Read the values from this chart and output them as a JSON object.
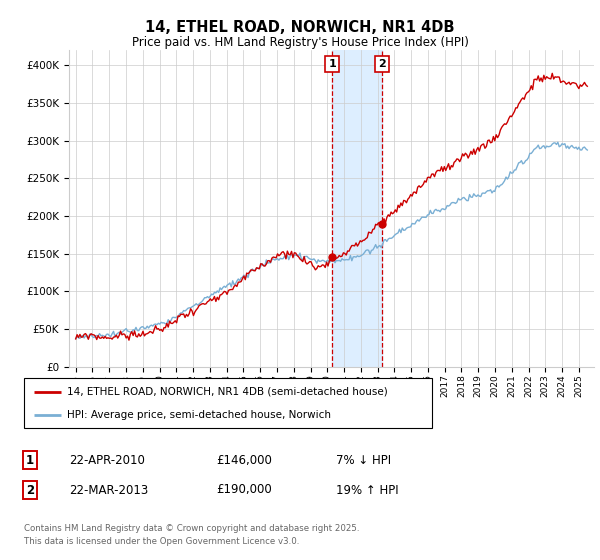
{
  "title": "14, ETHEL ROAD, NORWICH, NR1 4DB",
  "subtitle": "Price paid vs. HM Land Registry's House Price Index (HPI)",
  "legend_line1": "14, ETHEL ROAD, NORWICH, NR1 4DB (semi-detached house)",
  "legend_line2": "HPI: Average price, semi-detached house, Norwich",
  "transaction1_date": "22-APR-2010",
  "transaction1_price": "£146,000",
  "transaction1_hpi": "7% ↓ HPI",
  "transaction2_date": "22-MAR-2013",
  "transaction2_price": "£190,000",
  "transaction2_hpi": "19% ↑ HPI",
  "footer": "Contains HM Land Registry data © Crown copyright and database right 2025.\nThis data is licensed under the Open Government Licence v3.0.",
  "red_color": "#cc0000",
  "blue_color": "#7aafd4",
  "background_color": "#ffffff",
  "grid_color": "#cccccc",
  "highlight_color": "#ddeeff",
  "ylim_min": 0,
  "ylim_max": 420000,
  "transaction1_year": 2010.3,
  "transaction2_year": 2013.25,
  "transaction1_value": 146000,
  "transaction2_value": 190000
}
